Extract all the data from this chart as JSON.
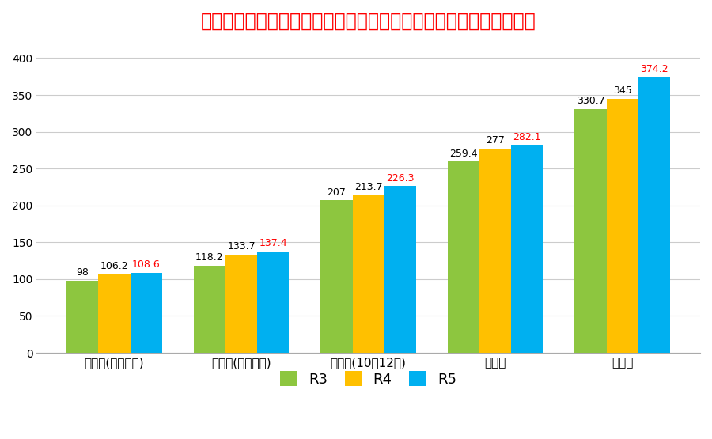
{
  "title": "子どものインターネット利用時間（全国：平日一日当たりの平均）",
  "categories": [
    "通園中(０～６歳)",
    "小学生(６～９歳)",
    "小学生(10～12歳)",
    "中学生",
    "高校生"
  ],
  "series": {
    "R3": [
      98,
      118.2,
      207,
      259.4,
      330.7
    ],
    "R4": [
      106.2,
      133.7,
      213.7,
      277,
      345
    ],
    "R5": [
      108.6,
      137.4,
      226.3,
      282.1,
      374.2
    ]
  },
  "colors": {
    "R3": "#8DC63F",
    "R4": "#FFC000",
    "R5": "#00B0F0"
  },
  "label_colors": {
    "R3": "#000000",
    "R4": "#000000",
    "R5": "#FF0000"
  },
  "ylim": [
    0,
    420
  ],
  "yticks": [
    0,
    50,
    100,
    150,
    200,
    250,
    300,
    350,
    400
  ],
  "background_color": "#FFFFFF",
  "title_color": "#FF0000",
  "title_fontsize": 17,
  "bar_width": 0.25,
  "legend_labels": [
    "R3",
    "R4",
    "R5"
  ],
  "grid_color": "#CCCCCC"
}
